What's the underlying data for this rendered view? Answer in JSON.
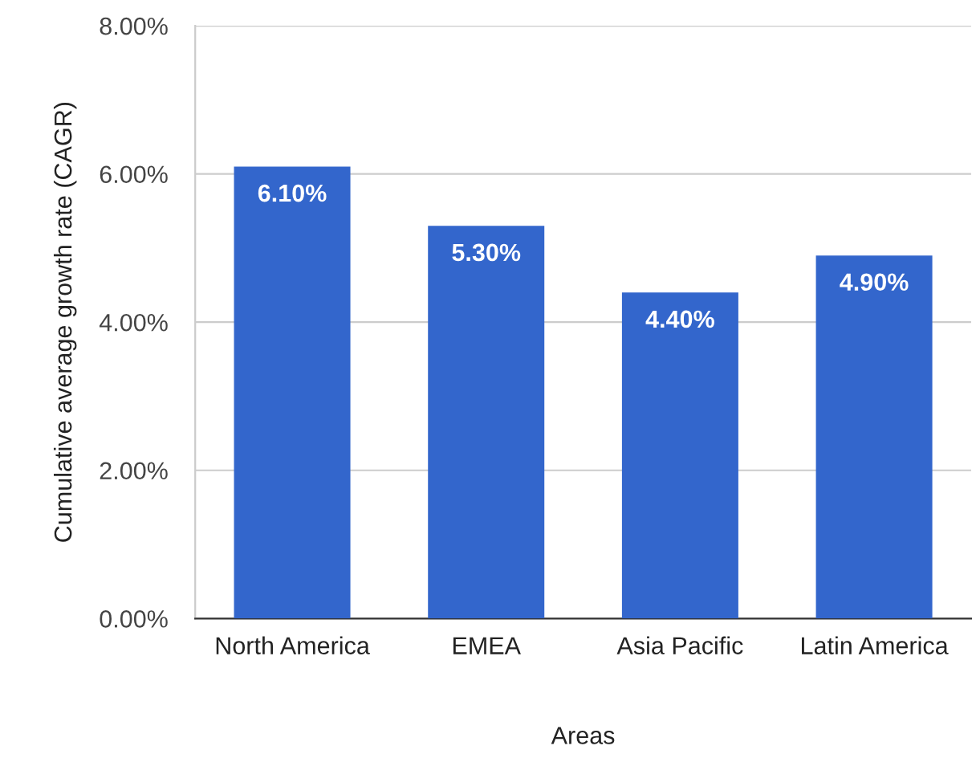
{
  "chart_data": {
    "type": "bar",
    "xlabel": "Areas",
    "ylabel": "Cumulative average growth rate (CAGR)",
    "categories": [
      "North America",
      "EMEA",
      "Asia Pacific",
      "Latin America"
    ],
    "values": [
      6.1,
      5.3,
      4.4,
      4.9
    ],
    "color": "#3366cc",
    "value_labels": [
      "6.10%",
      "5.30%",
      "4.40%",
      "4.90%"
    ],
    "ylim": [
      0,
      8
    ],
    "yticks": [
      {
        "value": 0,
        "label": "0.00%"
      },
      {
        "value": 2,
        "label": "2.00%"
      },
      {
        "value": 4,
        "label": "4.00%"
      },
      {
        "value": 6,
        "label": "6.00%"
      },
      {
        "value": 8,
        "label": "8.00%"
      }
    ],
    "grid": "y",
    "legend": false
  }
}
